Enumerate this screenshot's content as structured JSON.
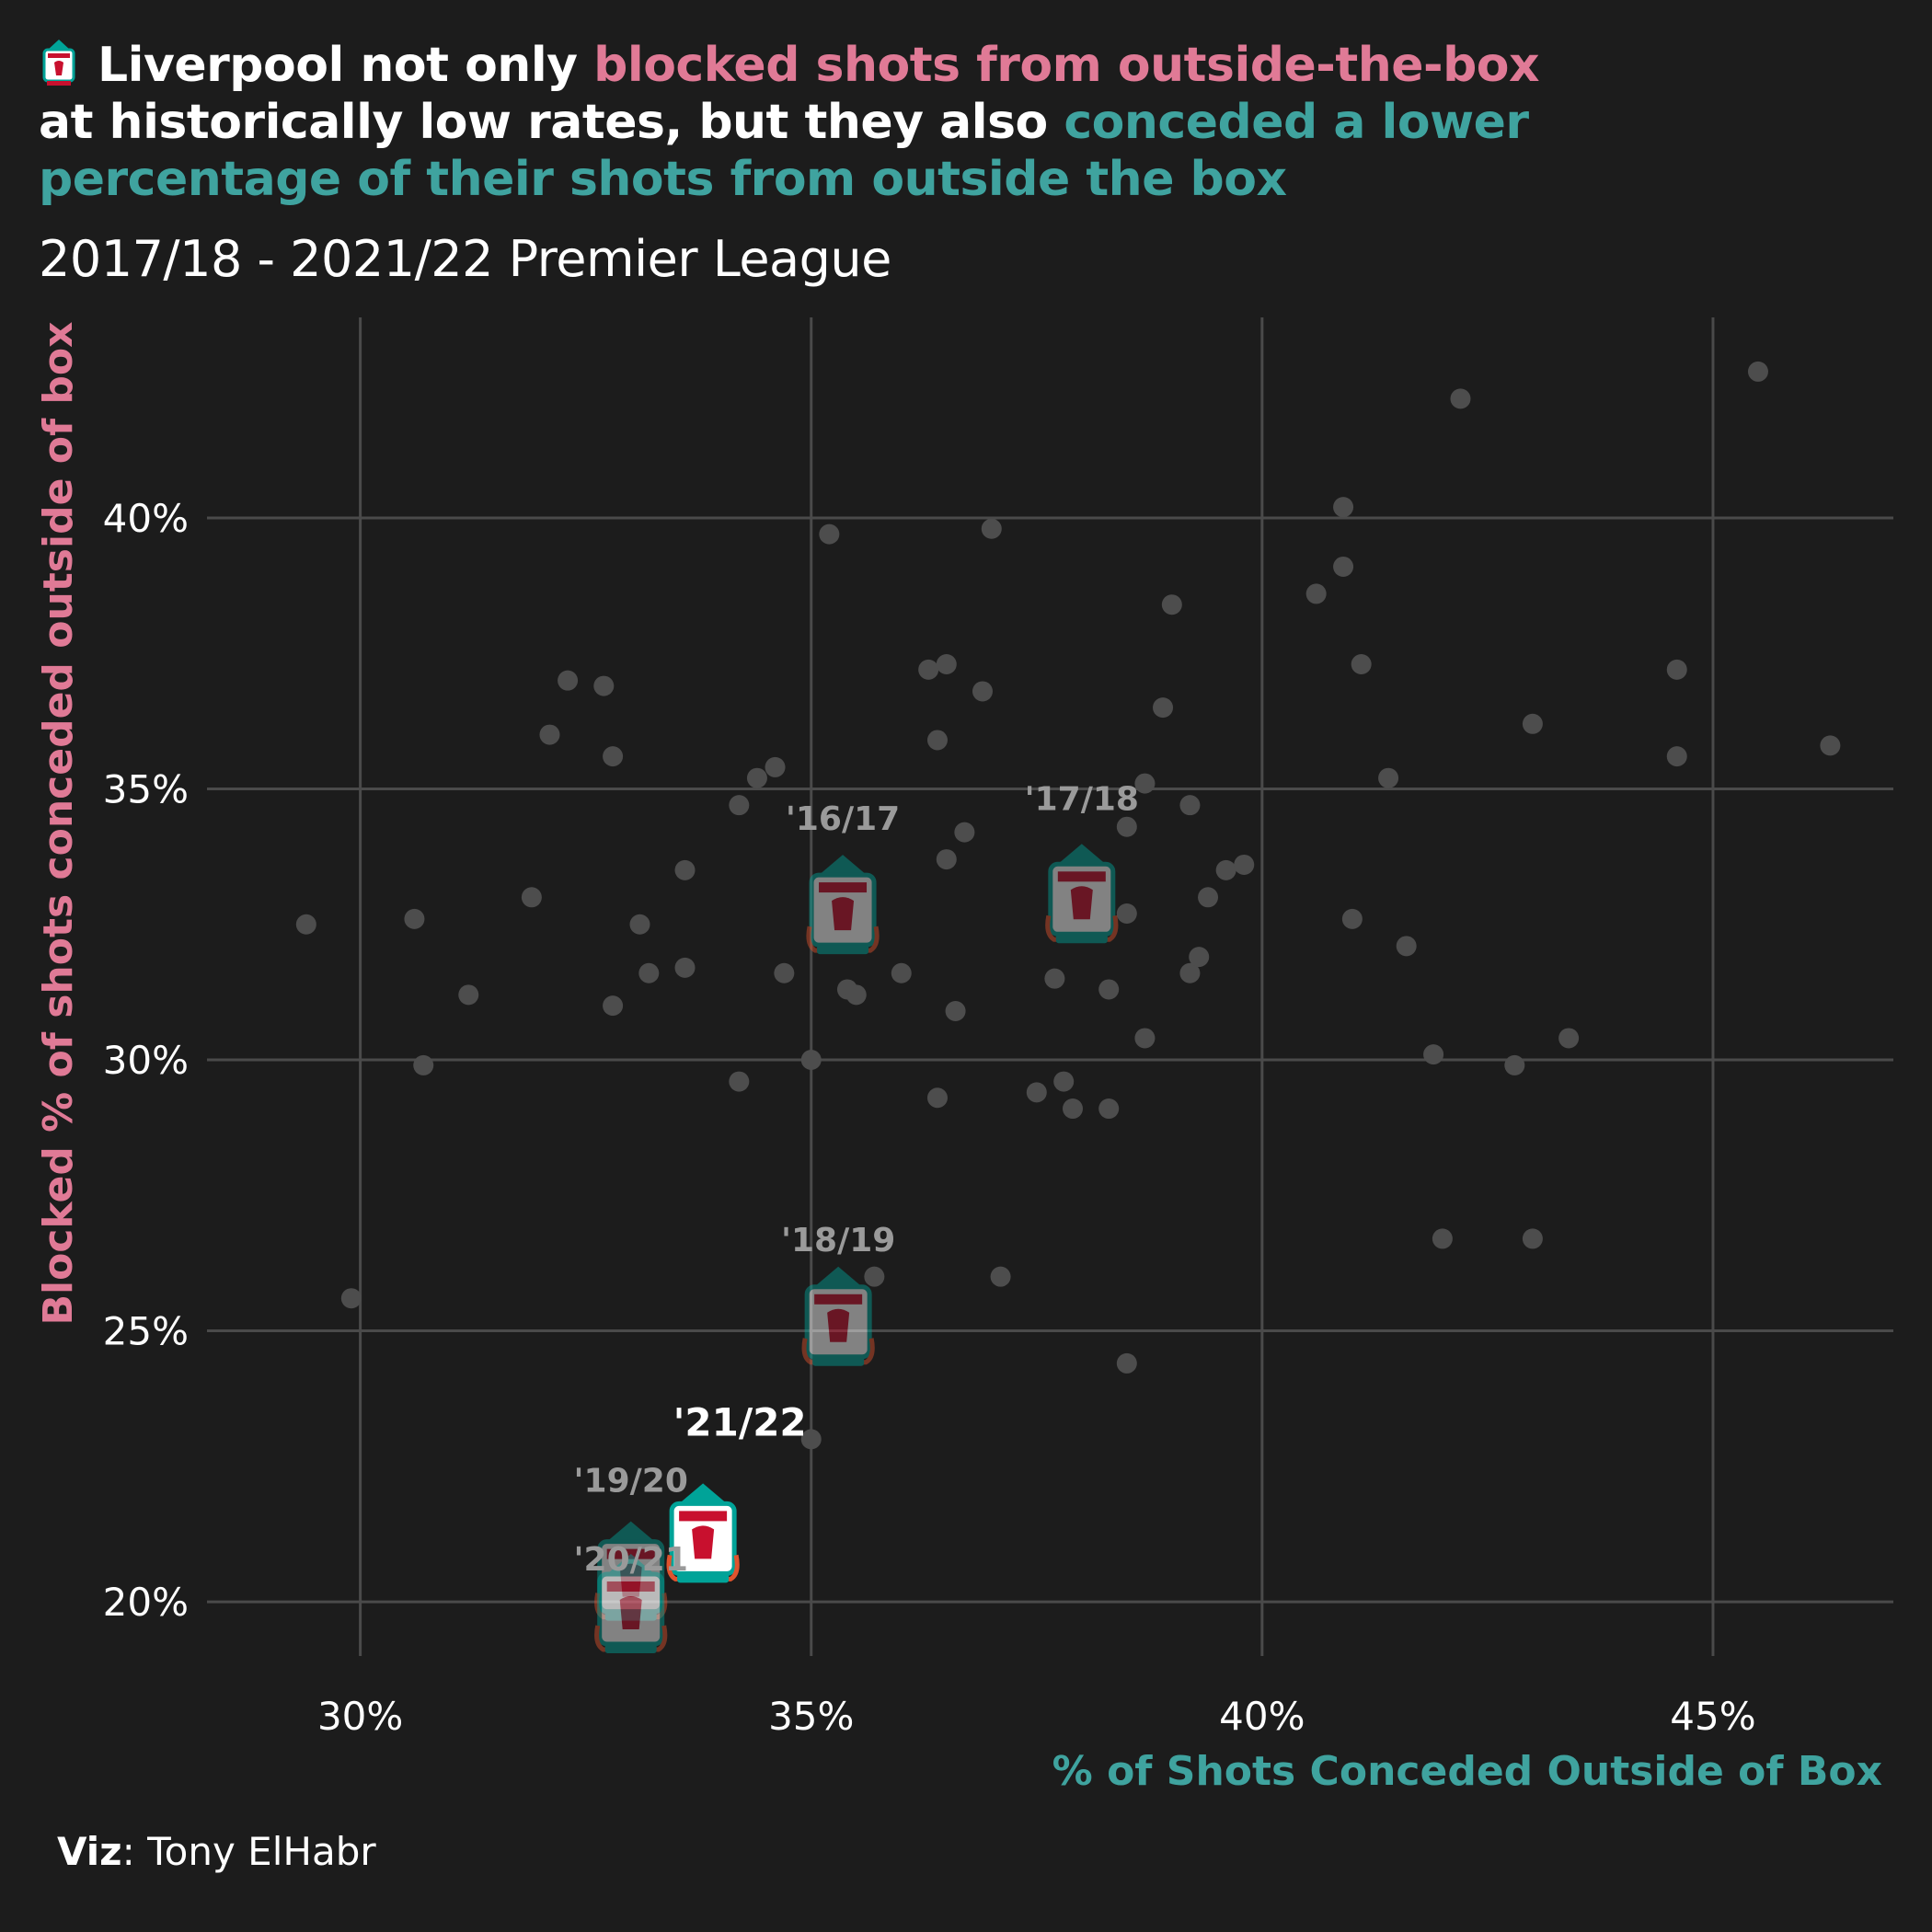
{
  "title": {
    "part1": "Liverpool not only ",
    "part2": "blocked shots from outside-the-box",
    "part3": "at historically low rates, but they also ",
    "part4": "conceded a lower percentage of their shots from outside the box"
  },
  "subtitle": "2017/18 - 2021/22 Premier League",
  "caption": {
    "label": "Viz",
    "sep": ": ",
    "author": "Tony ElHabr"
  },
  "colors": {
    "background": "#1c1c1c",
    "pink": "#e07a96",
    "teal": "#3fa39f",
    "grid": "#4a4a4a",
    "point": "#4d4d4d",
    "crest_red": "#c8102e",
    "crest_teal": "#00a398"
  },
  "icons": {
    "title_crest": "liverpool-crest-icon"
  },
  "chart_data": {
    "type": "scatter",
    "xlabel": "% of Shots Conceded Outside of Box",
    "ylabel": "Blocked % of shots conceded outside of box",
    "xlim": [
      28.3,
      47.0
    ],
    "ylim": [
      19.0,
      43.7
    ],
    "x_ticks": [
      30,
      35,
      40,
      45
    ],
    "y_ticks": [
      20,
      25,
      30,
      35,
      40
    ],
    "x_tick_labels": [
      "30%",
      "35%",
      "40%",
      "45%"
    ],
    "y_tick_labels": [
      "20%",
      "25%",
      "30%",
      "35%",
      "40%"
    ],
    "grid": true,
    "points": [
      [
        29.9,
        25.6
      ],
      [
        29.4,
        32.5
      ],
      [
        30.6,
        32.6
      ],
      [
        30.7,
        29.9
      ],
      [
        31.2,
        31.2
      ],
      [
        31.9,
        33.0
      ],
      [
        32.1,
        36.0
      ],
      [
        32.3,
        37.0
      ],
      [
        32.7,
        36.9
      ],
      [
        32.8,
        35.6
      ],
      [
        32.8,
        31.0
      ],
      [
        33.1,
        32.5
      ],
      [
        33.2,
        31.6
      ],
      [
        33.6,
        31.7
      ],
      [
        33.6,
        33.5
      ],
      [
        34.2,
        29.6
      ],
      [
        34.2,
        34.7
      ],
      [
        34.4,
        35.2
      ],
      [
        34.7,
        31.6
      ],
      [
        34.6,
        35.4
      ],
      [
        35.0,
        30.0
      ],
      [
        35.0,
        23.0
      ],
      [
        35.2,
        39.7
      ],
      [
        35.4,
        31.3
      ],
      [
        35.5,
        31.2
      ],
      [
        35.7,
        26.0
      ],
      [
        36.0,
        31.6
      ],
      [
        36.3,
        37.2
      ],
      [
        36.4,
        29.3
      ],
      [
        36.4,
        35.9
      ],
      [
        36.5,
        33.7
      ],
      [
        36.5,
        37.3
      ],
      [
        36.6,
        30.9
      ],
      [
        36.7,
        34.2
      ],
      [
        36.9,
        36.8
      ],
      [
        37.0,
        39.8
      ],
      [
        37.1,
        26.0
      ],
      [
        37.5,
        29.4
      ],
      [
        37.7,
        31.5
      ],
      [
        37.8,
        29.6
      ],
      [
        37.9,
        29.1
      ],
      [
        38.3,
        29.1
      ],
      [
        38.3,
        31.3
      ],
      [
        38.5,
        32.7
      ],
      [
        38.5,
        34.3
      ],
      [
        38.5,
        24.4
      ],
      [
        38.7,
        35.1
      ],
      [
        38.7,
        30.4
      ],
      [
        38.9,
        36.5
      ],
      [
        39.0,
        38.4
      ],
      [
        39.2,
        31.6
      ],
      [
        39.2,
        34.7
      ],
      [
        39.3,
        31.9
      ],
      [
        39.4,
        33.0
      ],
      [
        39.6,
        33.5
      ],
      [
        39.8,
        33.6
      ],
      [
        40.6,
        38.6
      ],
      [
        40.9,
        40.2
      ],
      [
        40.9,
        39.1
      ],
      [
        41.0,
        32.6
      ],
      [
        41.1,
        37.3
      ],
      [
        41.4,
        35.2
      ],
      [
        41.6,
        32.1
      ],
      [
        41.9,
        30.1
      ],
      [
        42.0,
        26.7
      ],
      [
        42.2,
        42.2
      ],
      [
        42.8,
        29.9
      ],
      [
        43.0,
        36.2
      ],
      [
        43.0,
        26.7
      ],
      [
        43.4,
        30.4
      ],
      [
        44.6,
        37.2
      ],
      [
        44.6,
        35.6
      ],
      [
        45.5,
        42.7
      ],
      [
        46.3,
        35.8
      ]
    ],
    "highlights": [
      {
        "label": "'16/17",
        "x": 35.35,
        "y": 32.8,
        "faded": true
      },
      {
        "label": "'17/18",
        "x": 38.0,
        "y": 33.0,
        "faded": true
      },
      {
        "label": "'18/19",
        "x": 35.3,
        "y": 25.2,
        "faded": true
      },
      {
        "label": "'19/20",
        "x": 33.0,
        "y": 20.5,
        "faded": true
      },
      {
        "label": "'20/21",
        "x": 33.0,
        "y": 19.9,
        "faded": true
      },
      {
        "label": "'21/22",
        "x": 33.8,
        "y": 21.2,
        "faded": false
      }
    ]
  }
}
